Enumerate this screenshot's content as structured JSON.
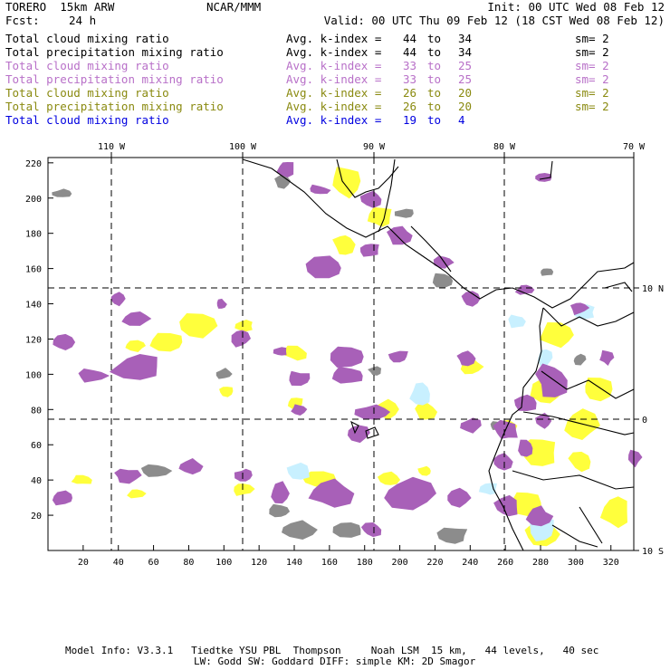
{
  "header": {
    "model": "TORERO  15km ARW",
    "center": "NCAR/MMM",
    "init": "Init: 00 UTC Wed 08 Feb 12",
    "fcst_label": "Fcst:",
    "fcst_value": "24 h",
    "valid": "Valid: 00 UTC Thu 09 Feb 12 (18 CST Wed 08 Feb 12)"
  },
  "legend": [
    {
      "field": "Total cloud mixing ratio",
      "avg_label": "Avg. k-index =",
      "k_from": "44",
      "to": "to",
      "k_to": "34",
      "sm": "sm= 2",
      "color": "#000000"
    },
    {
      "field": "Total precipitation mixing ratio",
      "avg_label": "Avg. k-index =",
      "k_from": "44",
      "to": "to",
      "k_to": "34",
      "sm": "sm= 2",
      "color": "#000000"
    },
    {
      "field": "Total cloud mixing ratio",
      "avg_label": "Avg. k-index =",
      "k_from": "33",
      "to": "to",
      "k_to": "25",
      "sm": "sm= 2",
      "color": "#b870c8"
    },
    {
      "field": "Total precipitation mixing ratio",
      "avg_label": "Avg. k-index =",
      "k_from": "33",
      "to": "to",
      "k_to": "25",
      "sm": "sm= 2",
      "color": "#b870c8"
    },
    {
      "field": "Total cloud mixing ratio",
      "avg_label": "Avg. k-index =",
      "k_from": "26",
      "to": "to",
      "k_to": "20",
      "sm": "sm= 2",
      "color": "#8a8a10"
    },
    {
      "field": "Total precipitation mixing ratio",
      "avg_label": "Avg. k-index =",
      "k_from": "26",
      "to": "to",
      "k_to": "20",
      "sm": "sm= 2",
      "color": "#8a8a10"
    },
    {
      "field": "Total cloud mixing ratio",
      "avg_label": "Avg. k-index =",
      "k_from": "19",
      "to": "to",
      "k_to": "4",
      "sm": "",
      "color": "#0000e0"
    }
  ],
  "map": {
    "lon_labels": [
      "110 W",
      "100 W",
      "90 W",
      "80 W",
      "70 W"
    ],
    "lat_labels": [
      "10 N",
      "0",
      "10 S"
    ],
    "y_ticks": [
      "20",
      "40",
      "60",
      "80",
      "100",
      "120",
      "140",
      "160",
      "180",
      "200",
      "220"
    ],
    "x_ticks": [
      "20",
      "40",
      "60",
      "80",
      "100",
      "120",
      "140",
      "160",
      "180",
      "200",
      "220",
      "240",
      "260",
      "280",
      "300",
      "320"
    ],
    "colors": {
      "gray": "#8c8c8c",
      "purple": "#a860b8",
      "yellow": "#ffff3c",
      "cyan": "#c8f0ff",
      "coast": "#000000"
    }
  },
  "footer": {
    "line1": "Model Info: V3.3.1   Tiedtke YSU PBL  Thompson     Noah LSM  15 km,   44 levels,   40 sec",
    "line2": "LW: Godd SW: Goddard DIFF: simple KM: 2D Smagor"
  }
}
